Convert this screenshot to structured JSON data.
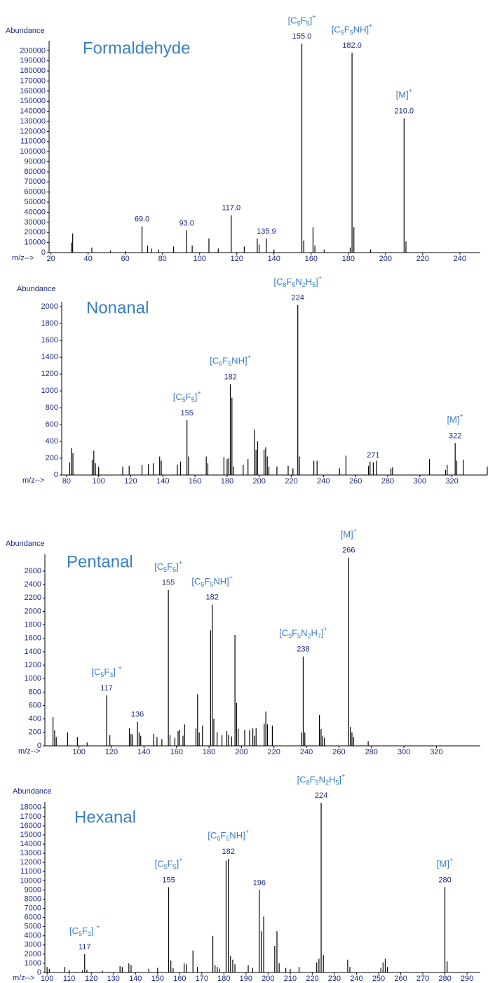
{
  "chart_data": [
    {
      "type": "bar",
      "title": "Formaldehyde",
      "y_label": "Abundance",
      "x_label": "m/z-->",
      "color": "#000000",
      "x": [
        31,
        31.7,
        42,
        52,
        60,
        69,
        72,
        74,
        78,
        86,
        93,
        96,
        105,
        110,
        117,
        124,
        131,
        132,
        135.9,
        140,
        155,
        156,
        161,
        162,
        167,
        181,
        182,
        183,
        192,
        210,
        211
      ],
      "values": [
        10000,
        19000,
        5000,
        2000,
        1500,
        26000,
        7000,
        4000,
        3000,
        6000,
        22000,
        7000,
        14000,
        4000,
        37000,
        6000,
        14000,
        8000,
        14000,
        3000,
        207000,
        12000,
        25000,
        7000,
        3000,
        5000,
        198000,
        25000,
        3000,
        133000,
        11000
      ],
      "xlim": [
        19,
        251
      ],
      "ylim": [
        0,
        210000
      ],
      "xticks": [
        20,
        40,
        60,
        80,
        100,
        120,
        140,
        160,
        180,
        200,
        220,
        240
      ],
      "yticks": [
        0,
        10000,
        20000,
        30000,
        40000,
        50000,
        60000,
        70000,
        80000,
        90000,
        100000,
        110000,
        120000,
        130000,
        140000,
        150000,
        160000,
        170000,
        180000,
        190000,
        200000
      ],
      "annotations": [
        {
          "x": 69,
          "label": "69.0"
        },
        {
          "x": 93,
          "label": "93.0"
        },
        {
          "x": 117,
          "label": "117.0"
        },
        {
          "x": 135.9,
          "label": "135.9"
        },
        {
          "x": 155,
          "label": "155.0",
          "formula": "[C5F5]+"
        },
        {
          "x": 182,
          "label": "182.0",
          "formula": "[C6F5NH]+"
        },
        {
          "x": 210,
          "label": "210.0",
          "formula": "[M]+"
        }
      ]
    },
    {
      "type": "bar",
      "title": "Nonanal",
      "y_label": "Abundance",
      "x_label": "m/z-->",
      "color": "#000000",
      "x": [
        82,
        83,
        84,
        96,
        97,
        98,
        100,
        115,
        119,
        127,
        131,
        134,
        138,
        139,
        149,
        151,
        155,
        156,
        167,
        168,
        178,
        180,
        181,
        182,
        183,
        184,
        190,
        193,
        197,
        198,
        199,
        203,
        204,
        205,
        206,
        211,
        218,
        221,
        224,
        225,
        234,
        236,
        250,
        254,
        268,
        269,
        271,
        273,
        282,
        283,
        306,
        316,
        317,
        322,
        323,
        327,
        342
      ],
      "values": [
        150,
        320,
        260,
        180,
        290,
        140,
        100,
        100,
        110,
        120,
        130,
        140,
        220,
        170,
        120,
        160,
        650,
        220,
        220,
        140,
        210,
        190,
        200,
        1080,
        920,
        100,
        120,
        190,
        540,
        300,
        400,
        300,
        330,
        220,
        100,
        100,
        110,
        80,
        2020,
        220,
        170,
        170,
        80,
        230,
        110,
        160,
        150,
        170,
        80,
        90,
        190,
        60,
        120,
        380,
        170,
        180,
        100
      ],
      "xlim": [
        77,
        342
      ],
      "ylim": [
        0,
        2060
      ],
      "xticks": [
        80,
        100,
        120,
        140,
        160,
        180,
        200,
        220,
        240,
        260,
        280,
        300,
        320
      ],
      "yticks": [
        0,
        200,
        400,
        600,
        800,
        1000,
        1200,
        1400,
        1600,
        1800,
        2000
      ],
      "annotations": [
        {
          "x": 155,
          "label": "155",
          "formula": "[C5F5]+"
        },
        {
          "x": 182,
          "label": "182",
          "formula": "[C6F5NH]+"
        },
        {
          "x": 224,
          "label": "224",
          "formula": "[C8F5N2H5]+"
        },
        {
          "x": 271,
          "label": "271"
        },
        {
          "x": 322,
          "label": "322",
          "formula": "[M]+"
        }
      ]
    },
    {
      "type": "bar",
      "title": "Pentanal",
      "y_label": "Abundance",
      "x_label": "m/z-->",
      "color": "#000000",
      "x": [
        84,
        85,
        86,
        93,
        99,
        105,
        117,
        119,
        131,
        132,
        133,
        136,
        137,
        138,
        146,
        148,
        151,
        155,
        156,
        159,
        161,
        162,
        164,
        165,
        172,
        173,
        174,
        176,
        181,
        182,
        183,
        185,
        188,
        191,
        192,
        194,
        196,
        197,
        198,
        202,
        205,
        207,
        208,
        209,
        214,
        215,
        216,
        219,
        237,
        238,
        239,
        248,
        249,
        250,
        251,
        266,
        267,
        268,
        269,
        278
      ],
      "values": [
        430,
        230,
        130,
        200,
        130,
        50,
        750,
        160,
        260,
        180,
        170,
        360,
        200,
        150,
        180,
        130,
        100,
        2320,
        160,
        120,
        220,
        240,
        150,
        320,
        260,
        770,
        200,
        300,
        1720,
        2100,
        400,
        200,
        160,
        220,
        160,
        140,
        1650,
        640,
        250,
        240,
        230,
        260,
        150,
        260,
        330,
        510,
        320,
        300,
        200,
        1330,
        200,
        460,
        250,
        150,
        120,
        2800,
        280,
        200,
        130,
        70
      ],
      "xlim": [
        79,
        347
      ],
      "ylim": [
        0,
        2850
      ],
      "xticks": [
        100,
        120,
        140,
        160,
        180,
        200,
        220,
        240,
        260,
        280,
        300,
        320
      ],
      "yticks": [
        0,
        200,
        400,
        600,
        800,
        1000,
        1200,
        1400,
        1600,
        1800,
        2000,
        2200,
        2400,
        2600
      ],
      "annotations": [
        {
          "x": 117,
          "label": "117",
          "formula": "[C5F3] +"
        },
        {
          "x": 136,
          "label": "136"
        },
        {
          "x": 155,
          "label": "155",
          "formula": "[C5F5]+"
        },
        {
          "x": 182,
          "label": "182",
          "formula": "[C6F5NH]+"
        },
        {
          "x": 238,
          "label": "238",
          "formula": "[C9F5N2H7]+"
        },
        {
          "x": 266,
          "label": "266",
          "formula": "[M]+"
        }
      ]
    },
    {
      "type": "bar",
      "title": "Hexanal",
      "y_label": "Abundance",
      "x_label": "m/z-->",
      "color": "#000000",
      "x": [
        100,
        101,
        108,
        110,
        116,
        117,
        118,
        125,
        133,
        134,
        137,
        138,
        146,
        150,
        155,
        156,
        157,
        162,
        163,
        166,
        168,
        175,
        176,
        177,
        178,
        181,
        182,
        183,
        184,
        185,
        191,
        193,
        196,
        197,
        198,
        203,
        204,
        205,
        208,
        210,
        214,
        222,
        223,
        224,
        225,
        236,
        237,
        251,
        252,
        253,
        254,
        280,
        281
      ],
      "values": [
        600,
        400,
        600,
        300,
        200,
        2000,
        300,
        200,
        700,
        600,
        1000,
        800,
        400,
        500,
        9300,
        1300,
        500,
        1000,
        900,
        2400,
        600,
        4000,
        800,
        600,
        400,
        12200,
        12400,
        1800,
        1400,
        900,
        800,
        500,
        9000,
        4500,
        6100,
        2900,
        4500,
        1000,
        500,
        400,
        600,
        1100,
        1500,
        18500,
        1900,
        1400,
        600,
        500,
        1100,
        1500,
        600,
        9300,
        1200
      ],
      "xlim": [
        99,
        296
      ],
      "ylim": [
        0,
        18600
      ],
      "xticks": [
        100,
        110,
        120,
        130,
        140,
        150,
        160,
        170,
        180,
        190,
        200,
        210,
        220,
        230,
        240,
        250,
        260,
        270,
        280,
        290
      ],
      "yticks": [
        0,
        1000,
        2000,
        3000,
        4000,
        5000,
        6000,
        7000,
        8000,
        9000,
        10000,
        11000,
        12000,
        13000,
        14000,
        15000,
        16000,
        17000,
        18000
      ],
      "annotations": [
        {
          "x": 117,
          "label": "117",
          "formula": "[C5F3] +"
        },
        {
          "x": 155,
          "label": "155",
          "formula": "[C5F5]+"
        },
        {
          "x": 182,
          "label": "182",
          "formula": "[C6F5NH]+"
        },
        {
          "x": 196,
          "label": "196"
        },
        {
          "x": 224,
          "label": "224",
          "formula": "[C8F5N2H5]+"
        },
        {
          "x": 280,
          "label": "280",
          "formula": "[M]+"
        }
      ]
    }
  ]
}
